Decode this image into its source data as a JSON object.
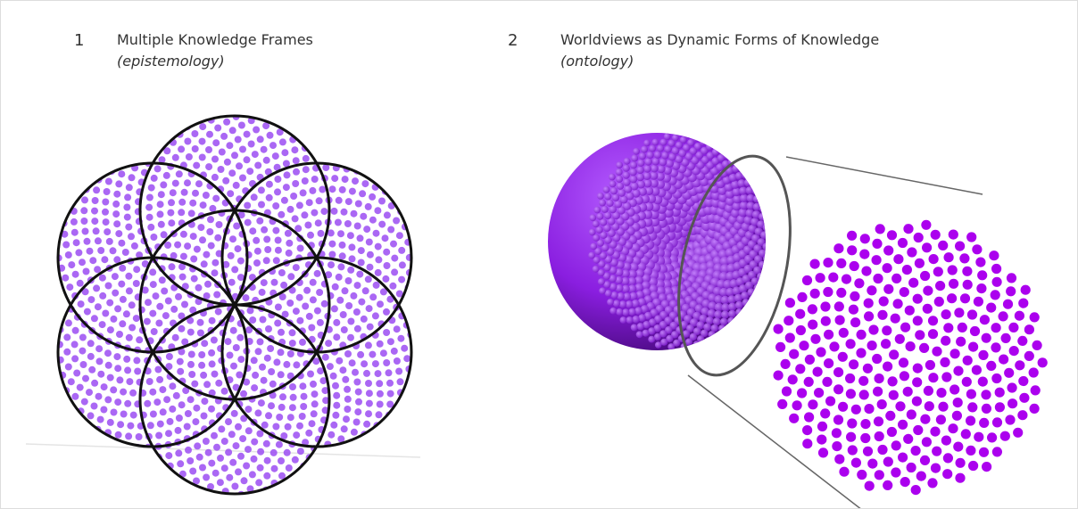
{
  "panels": [
    {
      "number": "1",
      "title": "Multiple Knowledge Frames",
      "subtitle": "(epistemology)"
    },
    {
      "number": "2",
      "title": "Worldviews as Dynamic Forms of Knowledge",
      "subtitle": "(ontology)"
    }
  ]
}
